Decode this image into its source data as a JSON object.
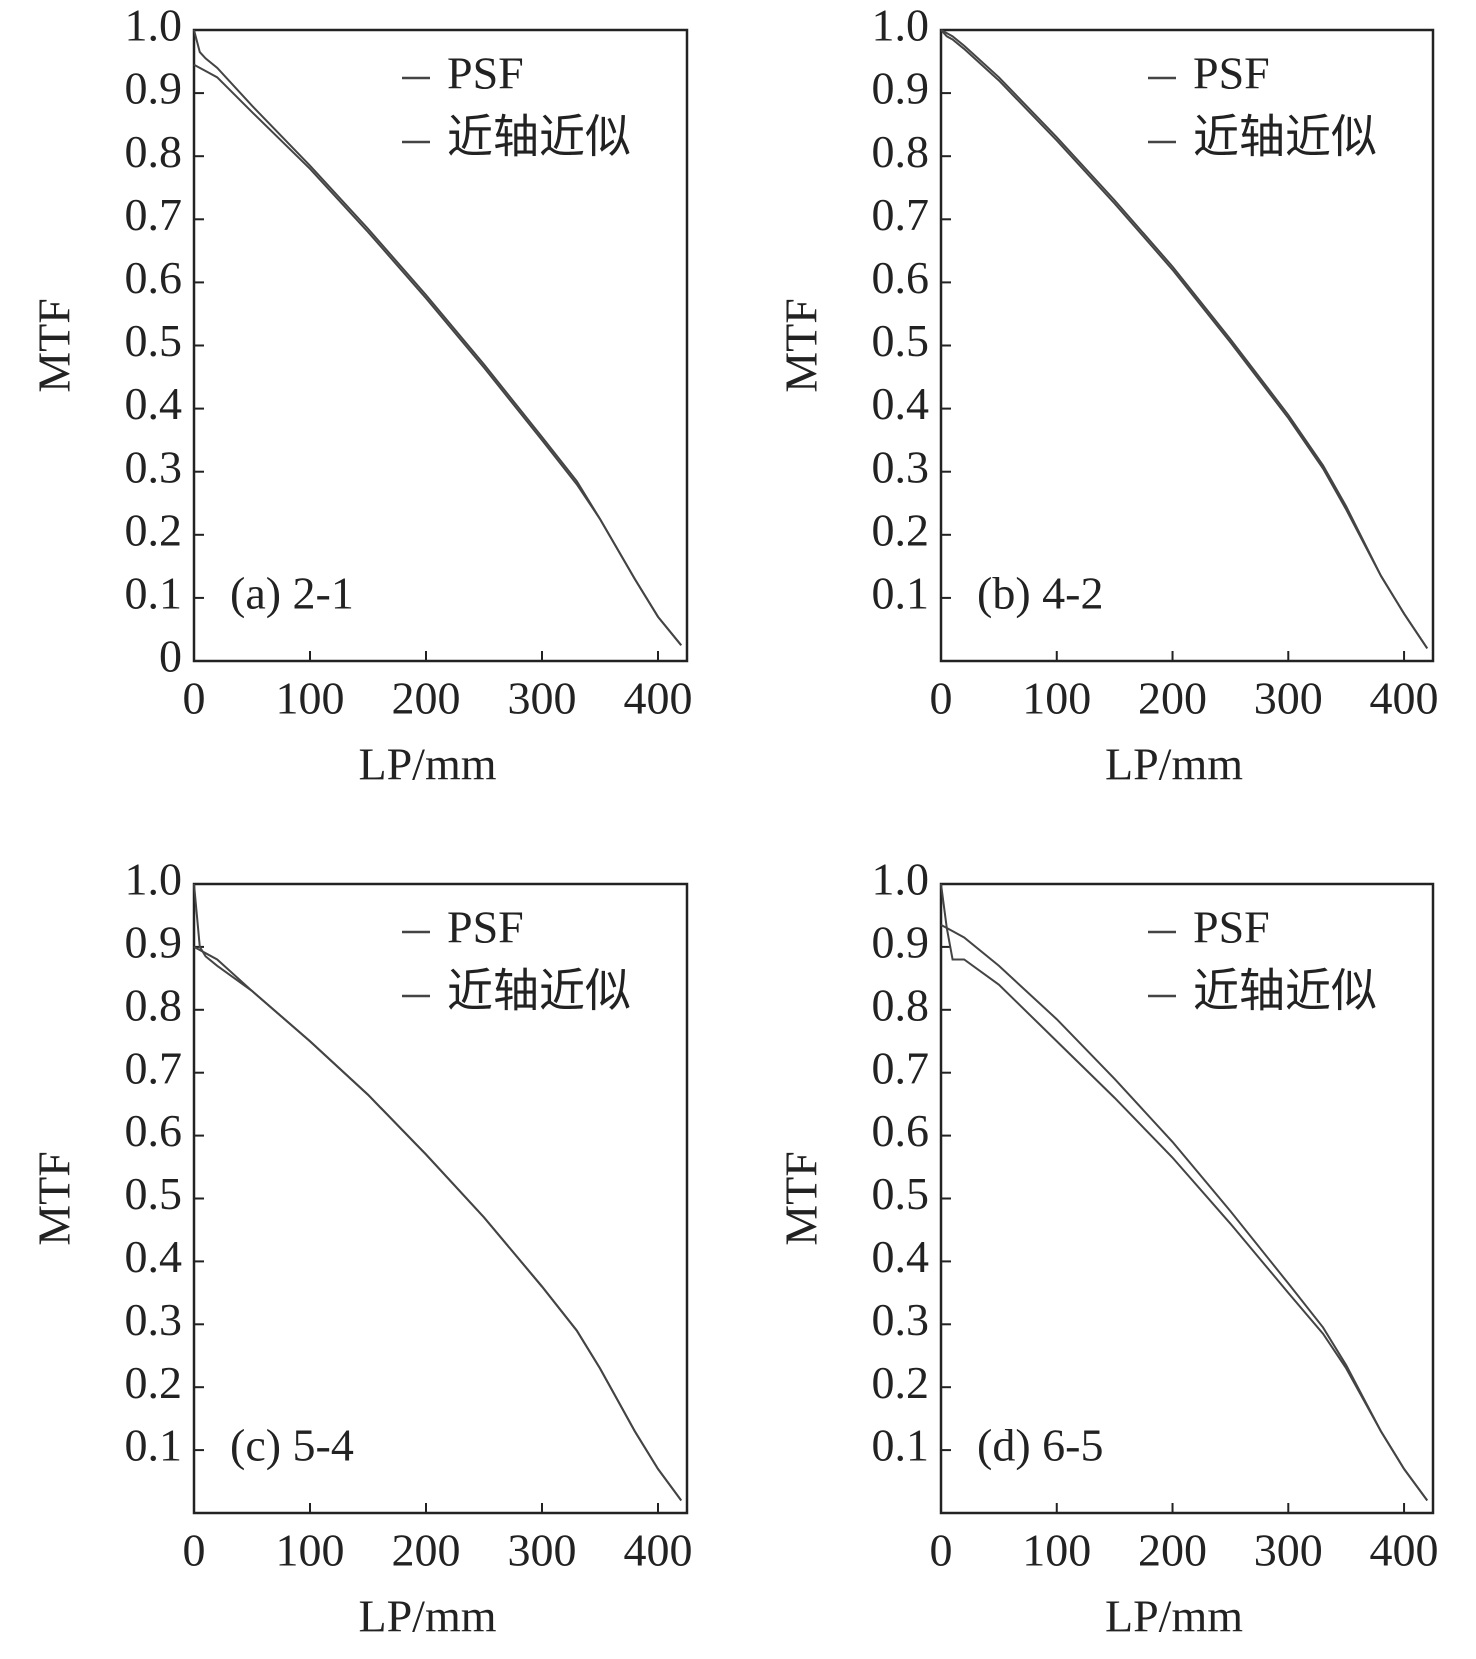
{
  "chart_data": [
    {
      "type": "line",
      "annotation": "(a) 2-1",
      "xlabel": "LP/mm",
      "ylabel": "MTF",
      "legend": "upper right",
      "xlim": [
        0,
        425
      ],
      "ylim": [
        0,
        1
      ],
      "xticks": [
        0,
        100,
        200,
        300,
        400
      ],
      "yticks": [
        0,
        0.1,
        0.2,
        0.3,
        0.4,
        0.5,
        0.6,
        0.7,
        0.8,
        0.9,
        {
          "value": 1,
          "label": "1.0"
        }
      ],
      "x": [
        0,
        5,
        10,
        20,
        50,
        100,
        150,
        200,
        250,
        300,
        330,
        350,
        380,
        400,
        420
      ],
      "series": [
        {
          "name": "PSF",
          "color": "#444444",
          "values": [
            1.0,
            0.965,
            0.955,
            0.94,
            0.88,
            0.785,
            0.685,
            0.58,
            0.47,
            0.355,
            0.285,
            0.225,
            0.13,
            0.07,
            0.025
          ]
        },
        {
          "name": "近轴近似",
          "color": "#444444",
          "values": [
            0.945,
            0.94,
            0.935,
            0.925,
            0.87,
            0.78,
            0.68,
            0.575,
            0.465,
            0.35,
            0.28,
            0.225,
            0.13,
            0.07,
            0.025
          ]
        }
      ]
    },
    {
      "type": "line",
      "annotation": "(b) 4-2",
      "xlabel": "LP/mm",
      "ylabel": "MTF",
      "legend": "upper right",
      "xlim": [
        0,
        425
      ],
      "ylim": [
        0,
        1
      ],
      "xticks": [
        0,
        100,
        200,
        300,
        400
      ],
      "yticks": [
        0.1,
        0.2,
        0.3,
        0.4,
        0.5,
        0.6,
        0.7,
        0.8,
        0.9,
        {
          "value": 1,
          "label": "1.0"
        }
      ],
      "x": [
        0,
        5,
        10,
        20,
        50,
        100,
        150,
        200,
        250,
        300,
        330,
        350,
        380,
        400,
        420
      ],
      "series": [
        {
          "name": "PSF",
          "color": "#444444",
          "values": [
            1.0,
            0.995,
            0.99,
            0.975,
            0.925,
            0.83,
            0.73,
            0.625,
            0.51,
            0.39,
            0.31,
            0.245,
            0.135,
            0.075,
            0.02
          ]
        },
        {
          "name": "近轴近似",
          "color": "#444444",
          "values": [
            1.0,
            0.99,
            0.985,
            0.97,
            0.92,
            0.825,
            0.725,
            0.62,
            0.505,
            0.385,
            0.305,
            0.24,
            0.135,
            0.075,
            0.02
          ]
        }
      ]
    },
    {
      "type": "line",
      "annotation": "(c) 5-4",
      "xlabel": "LP/mm",
      "ylabel": "MTF",
      "legend": "upper right",
      "xlim": [
        0,
        425
      ],
      "ylim": [
        0,
        1
      ],
      "xticks": [
        0,
        100,
        200,
        300,
        400
      ],
      "yticks": [
        0.1,
        0.2,
        0.3,
        0.4,
        0.5,
        0.6,
        0.7,
        0.8,
        0.9,
        {
          "value": 1,
          "label": "1.0"
        }
      ],
      "x": [
        0,
        5,
        10,
        20,
        50,
        100,
        150,
        200,
        250,
        300,
        330,
        350,
        380,
        400,
        420
      ],
      "series": [
        {
          "name": "PSF",
          "color": "#444444",
          "values": [
            1.0,
            0.9,
            0.885,
            0.87,
            0.83,
            0.75,
            0.665,
            0.57,
            0.47,
            0.36,
            0.29,
            0.23,
            0.13,
            0.07,
            0.02
          ]
        },
        {
          "name": "近轴近似",
          "color": "#444444",
          "values": [
            0.9,
            0.895,
            0.89,
            0.88,
            0.83,
            0.75,
            0.665,
            0.57,
            0.47,
            0.36,
            0.29,
            0.23,
            0.13,
            0.07,
            0.02
          ]
        }
      ]
    },
    {
      "type": "line",
      "annotation": "(d) 6-5",
      "xlabel": "LP/mm",
      "ylabel": "MTF",
      "legend": "upper right",
      "xlim": [
        0,
        425
      ],
      "ylim": [
        0,
        1
      ],
      "xticks": [
        0,
        100,
        200,
        300,
        400
      ],
      "yticks": [
        0.1,
        0.2,
        0.3,
        0.4,
        0.5,
        0.6,
        0.7,
        0.8,
        0.9,
        {
          "value": 1,
          "label": "1.0"
        }
      ],
      "x": [
        0,
        5,
        10,
        20,
        50,
        100,
        150,
        200,
        250,
        300,
        330,
        350,
        380,
        400,
        420
      ],
      "series": [
        {
          "name": "PSF",
          "color": "#444444",
          "values": [
            1.0,
            0.93,
            0.88,
            0.88,
            0.84,
            0.75,
            0.66,
            0.565,
            0.46,
            0.35,
            0.285,
            0.23,
            0.13,
            0.07,
            0.02
          ]
        },
        {
          "name": "近轴近似",
          "color": "#444444",
          "values": [
            0.935,
            0.93,
            0.925,
            0.915,
            0.87,
            0.785,
            0.69,
            0.59,
            0.48,
            0.365,
            0.295,
            0.235,
            0.13,
            0.07,
            0.02
          ]
        }
      ]
    }
  ]
}
